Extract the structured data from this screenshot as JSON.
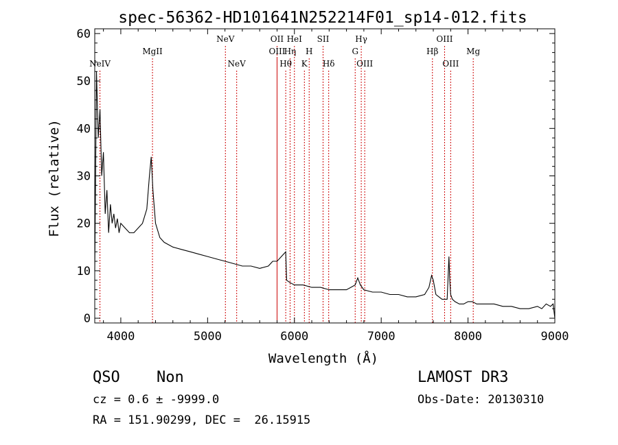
{
  "chart_data": {
    "type": "line",
    "title": "spec-56362-HD101641N252214F01_sp14-012.fits",
    "xlabel": "Wavelength (Å)",
    "ylabel": "Flux (relative)",
    "xlim": [
      3700,
      9000
    ],
    "ylim": [
      -1,
      61
    ],
    "x_ticks": [
      4000,
      5000,
      6000,
      7000,
      8000,
      9000
    ],
    "y_ticks": [
      0,
      10,
      20,
      30,
      40,
      50,
      60
    ],
    "grid": false,
    "line_color": "#000000",
    "marker_color": "#cc0000",
    "series": [
      {
        "x": [
          3700,
          3720,
          3740,
          3760,
          3780,
          3800,
          3820,
          3840,
          3860,
          3880,
          3900,
          3920,
          3940,
          3960,
          3980,
          4000,
          4050,
          4100,
          4150,
          4200,
          4250,
          4300,
          4330,
          4350,
          4370,
          4400,
          4450,
          4500,
          4600,
          4700,
          4800,
          4900,
          5000,
          5100,
          5200,
          5300,
          5400,
          5500,
          5600,
          5700,
          5750,
          5800,
          5850,
          5900,
          5910,
          5950,
          6000,
          6100,
          6200,
          6300,
          6400,
          6500,
          6600,
          6700,
          6730,
          6760,
          6800,
          6900,
          7000,
          7100,
          7200,
          7300,
          7400,
          7500,
          7550,
          7580,
          7600,
          7630,
          7700,
          7760,
          7780,
          7790,
          7800,
          7820,
          7850,
          7900,
          7950,
          8000,
          8050,
          8100,
          8200,
          8300,
          8400,
          8500,
          8600,
          8700,
          8800,
          8850,
          8900,
          8950,
          8980,
          9000
        ],
        "y": [
          10,
          52,
          38,
          44,
          30,
          35,
          22,
          27,
          18,
          24,
          20,
          22,
          19,
          21,
          18,
          20,
          19,
          18,
          18,
          19,
          20,
          23,
          30,
          34,
          27,
          20,
          17,
          16,
          15,
          14.5,
          14,
          13.5,
          13,
          12.5,
          12,
          11.5,
          11,
          11,
          10.5,
          11,
          12,
          12,
          13,
          14,
          8,
          7.5,
          7,
          7,
          6.5,
          6.5,
          6,
          6,
          6,
          7,
          8.5,
          7,
          6,
          5.5,
          5.5,
          5,
          5,
          4.5,
          4.5,
          5,
          6.5,
          9,
          8,
          5,
          4,
          4,
          13,
          8,
          5,
          4,
          3.5,
          3,
          3,
          3.5,
          3.5,
          3,
          3,
          3,
          2.5,
          2.5,
          2,
          2,
          2.5,
          2,
          3,
          2.5,
          3,
          0
        ]
      }
    ],
    "lines": [
      {
        "x": 3760,
        "label": "NeIV",
        "tier": 2
      },
      {
        "x": 4365,
        "label": "MgII",
        "tier": 1
      },
      {
        "x": 5205,
        "label": "NeV",
        "tier": 0
      },
      {
        "x": 5335,
        "label": "NeV",
        "tier": 2
      },
      {
        "x": 5800,
        "label": "OII",
        "tier": 0
      },
      {
        "x": 5800,
        "label": "OIII",
        "tier": 1
      },
      {
        "x": 5900,
        "label": "Hθ",
        "tier": 2
      },
      {
        "x": 5950,
        "label": "Hη",
        "tier": 1
      },
      {
        "x": 6000,
        "label": "HeI",
        "tier": 0
      },
      {
        "x": 6115,
        "label": "K",
        "tier": 2
      },
      {
        "x": 6170,
        "label": "H",
        "tier": 1
      },
      {
        "x": 6330,
        "label": "SII",
        "tier": 0
      },
      {
        "x": 6395,
        "label": "Hδ",
        "tier": 2
      },
      {
        "x": 6700,
        "label": "G",
        "tier": 1
      },
      {
        "x": 6770,
        "label": "Hγ",
        "tier": 0
      },
      {
        "x": 6810,
        "label": "OIII",
        "tier": 2
      },
      {
        "x": 7590,
        "label": "Hβ",
        "tier": 1
      },
      {
        "x": 7730,
        "label": "OIII",
        "tier": 0
      },
      {
        "x": 7800,
        "label": "OIII",
        "tier": 2
      },
      {
        "x": 8060,
        "label": "Mg",
        "tier": 1
      }
    ]
  },
  "footer": {
    "class_label": "QSO",
    "subclass_label": "Non",
    "survey_label": "LAMOST DR3",
    "cz_line": "cz = 0.6 ± -9999.0",
    "obs_date_line": "Obs-Date: 20130310",
    "coords_line": "RA = 151.90299, DEC =  26.15915"
  }
}
